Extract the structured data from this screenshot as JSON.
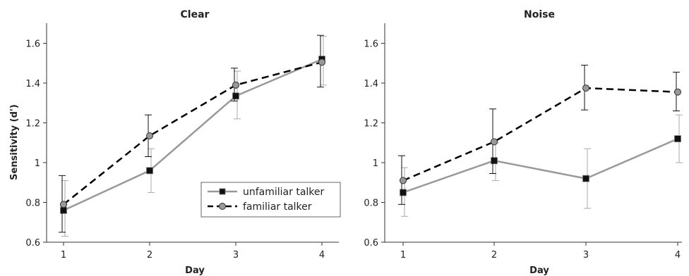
{
  "chart_data": [
    {
      "type": "line",
      "title": "Clear",
      "xlabel": "Day",
      "ylabel": "Sensitivity (d')",
      "x": [
        1,
        2,
        3,
        4
      ],
      "xticks": [
        "1",
        "2",
        "3",
        "4"
      ],
      "ylim": [
        0.6,
        1.7
      ],
      "yticks": [
        "0.6",
        "0.8",
        "1",
        "1.2",
        "1.4",
        "1.6"
      ],
      "legend_position": "bottom-right",
      "series": [
        {
          "name": "unfamiliar talker",
          "color": "#999999",
          "line": "solid",
          "marker": "square",
          "values": [
            0.76,
            0.96,
            1.335,
            1.52
          ],
          "err_low": [
            0.63,
            0.85,
            1.22,
            1.39
          ],
          "err_high": [
            0.91,
            1.07,
            1.46,
            1.635
          ]
        },
        {
          "name": "familiar talker",
          "color": "#000000",
          "line": "dashed",
          "marker": "circle",
          "values": [
            0.79,
            1.135,
            1.39,
            1.505
          ],
          "err_low": [
            0.65,
            1.03,
            1.31,
            1.38
          ],
          "err_high": [
            0.935,
            1.24,
            1.475,
            1.64
          ]
        }
      ]
    },
    {
      "type": "line",
      "title": "Noise",
      "xlabel": "Day",
      "ylabel": "",
      "x": [
        1,
        2,
        3,
        4
      ],
      "xticks": [
        "1",
        "2",
        "3",
        "4"
      ],
      "ylim": [
        0.6,
        1.7
      ],
      "yticks": [
        "0.6",
        "0.8",
        "1",
        "1.2",
        "1.4",
        "1.6"
      ],
      "series": [
        {
          "name": "unfamiliar talker",
          "color": "#999999",
          "line": "solid",
          "marker": "square",
          "values": [
            0.85,
            1.01,
            0.92,
            1.12
          ],
          "err_low": [
            0.73,
            0.91,
            0.77,
            1.0
          ],
          "err_high": [
            0.975,
            1.1,
            1.07,
            1.24
          ]
        },
        {
          "name": "familiar talker",
          "color": "#000000",
          "line": "dashed",
          "marker": "circle",
          "values": [
            0.91,
            1.105,
            1.375,
            1.355
          ],
          "err_low": [
            0.79,
            0.945,
            1.265,
            1.26
          ],
          "err_high": [
            1.035,
            1.27,
            1.49,
            1.455
          ]
        }
      ]
    }
  ]
}
